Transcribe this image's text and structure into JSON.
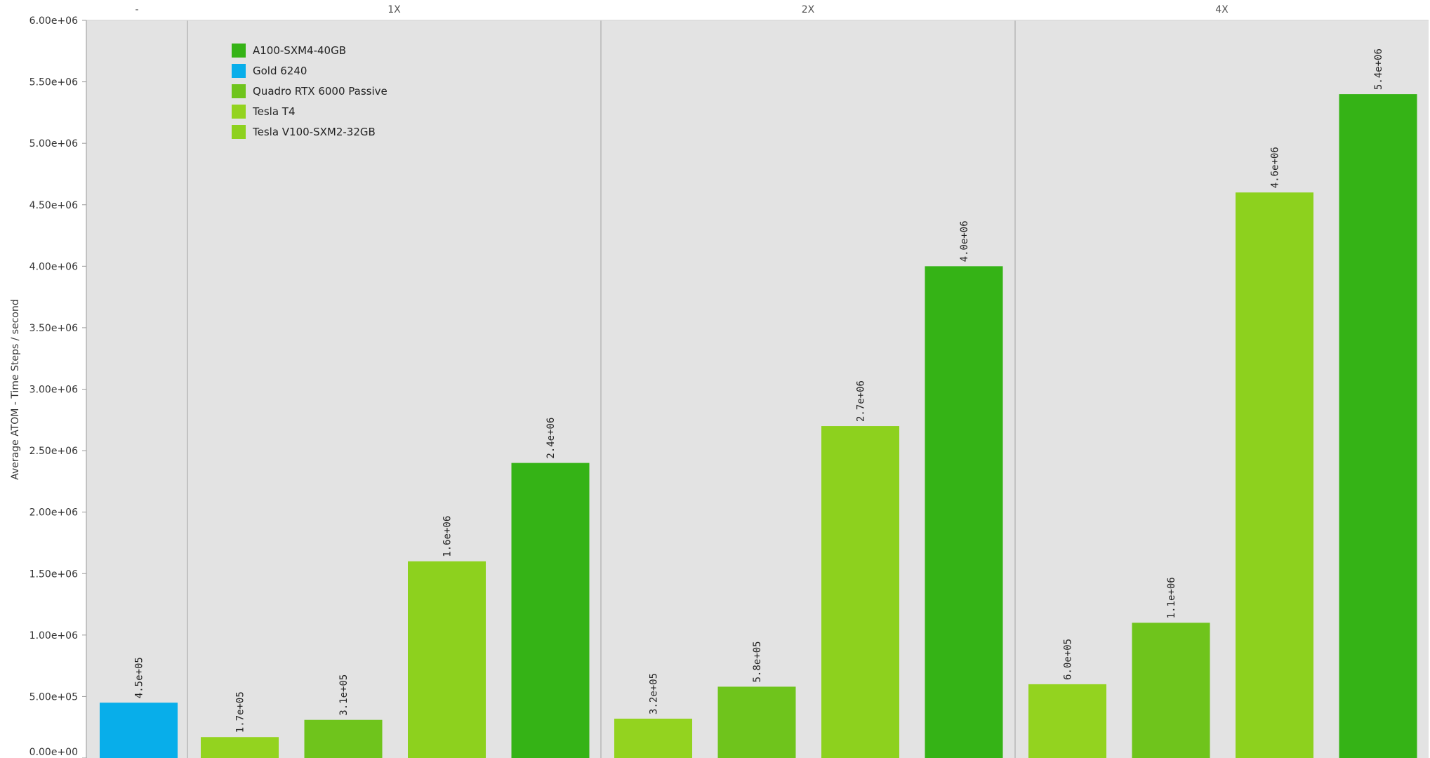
{
  "chart_data": {
    "type": "bar",
    "ylabel": "Average ATOM - Time Steps / second",
    "ylim": [
      0,
      6000000
    ],
    "y_ticks": [
      {
        "value": 0,
        "label": "0.00e+00"
      },
      {
        "value": 500000,
        "label": "5.00e+05"
      },
      {
        "value": 1000000,
        "label": "1.00e+06"
      },
      {
        "value": 1500000,
        "label": "1.50e+06"
      },
      {
        "value": 2000000,
        "label": "2.00e+06"
      },
      {
        "value": 2500000,
        "label": "2.50e+06"
      },
      {
        "value": 3000000,
        "label": "3.00e+06"
      },
      {
        "value": 3500000,
        "label": "3.50e+06"
      },
      {
        "value": 4000000,
        "label": "4.00e+06"
      },
      {
        "value": 4500000,
        "label": "4.50e+06"
      },
      {
        "value": 5000000,
        "label": "5.00e+06"
      },
      {
        "value": 5500000,
        "label": "5.50e+06"
      },
      {
        "value": 6000000,
        "label": "6.00e+06"
      }
    ],
    "grid": false,
    "legend_position": "top-left",
    "legend": [
      {
        "name": "A100-SXM4-40GB",
        "color": "#35b316"
      },
      {
        "name": "Gold 6240",
        "color": "#08aeea"
      },
      {
        "name": "Quadro RTX 6000 Passive",
        "color": "#6fc41c"
      },
      {
        "name": "Tesla T4",
        "color": "#93d31f"
      },
      {
        "name": "Tesla V100-SXM2-32GB",
        "color": "#8dd11e"
      }
    ],
    "panels": [
      {
        "label": "-",
        "bars": [
          {
            "series": "Gold 6240",
            "value": 450000,
            "label": "4.5e+05",
            "color": "#08aeea"
          }
        ]
      },
      {
        "label": "1X",
        "bars": [
          {
            "series": "Tesla T4",
            "value": 170000,
            "label": "1.7e+05",
            "color": "#93d31f"
          },
          {
            "series": "Quadro RTX 6000 Passive",
            "value": 310000,
            "label": "3.1e+05",
            "color": "#6fc41c"
          },
          {
            "series": "Tesla V100-SXM2-32GB",
            "value": 1600000,
            "label": "1.6e+06",
            "color": "#8dd11e"
          },
          {
            "series": "A100-SXM4-40GB",
            "value": 2400000,
            "label": "2.4e+06",
            "color": "#35b316"
          }
        ]
      },
      {
        "label": "2X",
        "bars": [
          {
            "series": "Tesla T4",
            "value": 320000,
            "label": "3.2e+05",
            "color": "#93d31f"
          },
          {
            "series": "Quadro RTX 6000 Passive",
            "value": 580000,
            "label": "5.8e+05",
            "color": "#6fc41c"
          },
          {
            "series": "Tesla V100-SXM2-32GB",
            "value": 2700000,
            "label": "2.7e+06",
            "color": "#8dd11e"
          },
          {
            "series": "A100-SXM4-40GB",
            "value": 4000000,
            "label": "4.0e+06",
            "color": "#35b316"
          }
        ]
      },
      {
        "label": "4X",
        "bars": [
          {
            "series": "Tesla T4",
            "value": 600000,
            "label": "6.0e+05",
            "color": "#93d31f"
          },
          {
            "series": "Quadro RTX 6000 Passive",
            "value": 1100000,
            "label": "1.1e+06",
            "color": "#6fc41c"
          },
          {
            "series": "Tesla V100-SXM2-32GB",
            "value": 4600000,
            "label": "4.6e+06",
            "color": "#8dd11e"
          },
          {
            "series": "A100-SXM4-40GB",
            "value": 5400000,
            "label": "5.4e+06",
            "color": "#35b316"
          }
        ]
      }
    ]
  }
}
